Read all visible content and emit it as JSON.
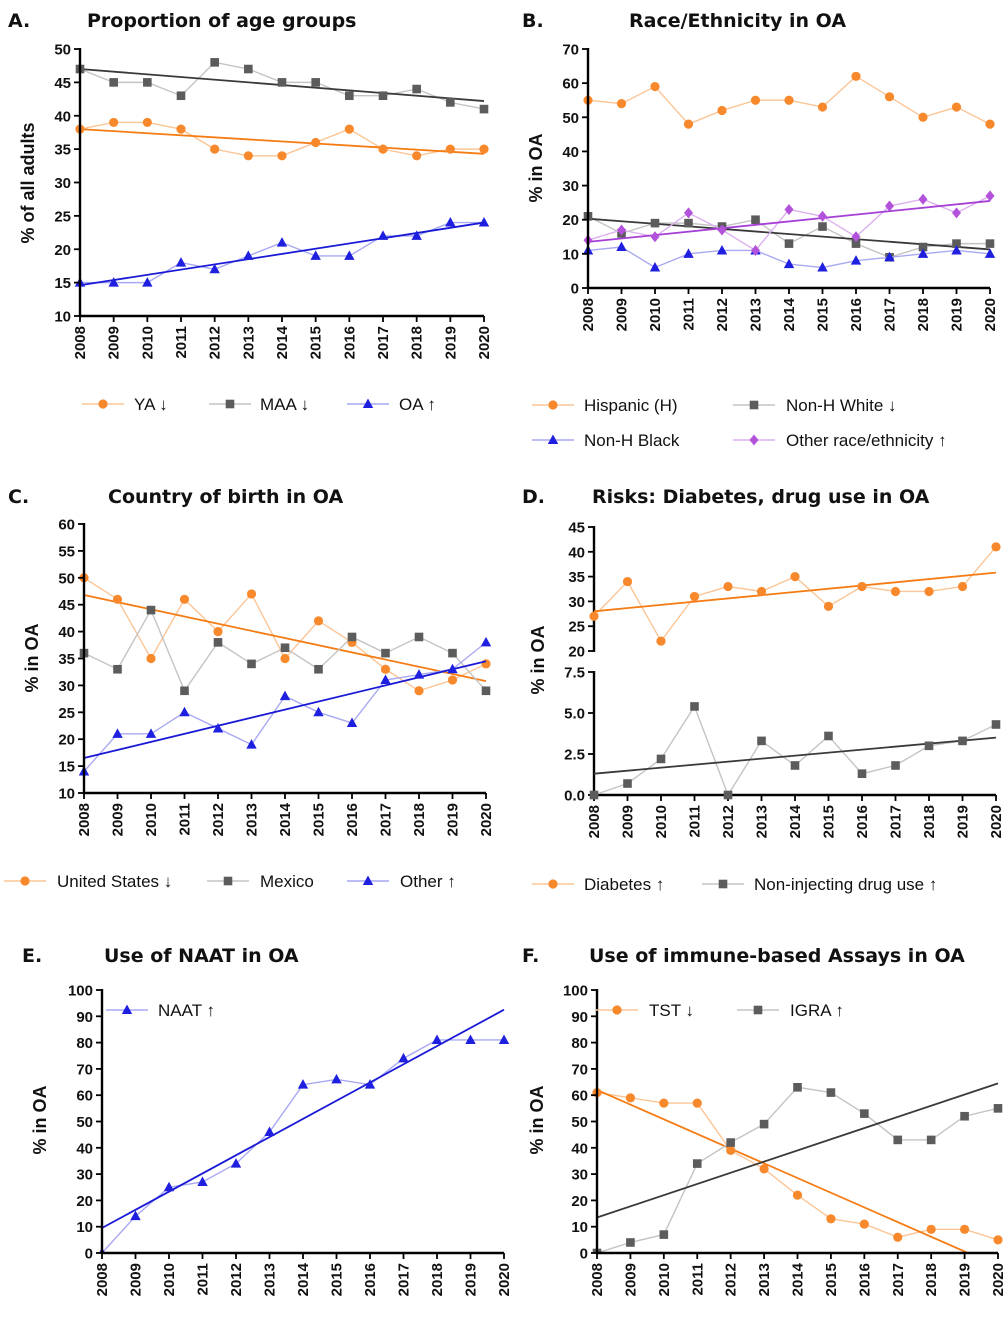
{
  "colors": {
    "orange": "#f7892c",
    "gray": "#5c5c5c",
    "blue": "#1f1fe0",
    "purple": "#b353db",
    "orangeLine": "#f57c14",
    "grayLine": "#3a3a3a",
    "blueLine": "#1a1ad6",
    "purpleLine": "#a63fd6",
    "orangeFaint": "#fbc596",
    "grayFaint": "#c4c4c4",
    "blueFaint": "#a9a9f3",
    "purpleFaint": "#dcb0ef"
  },
  "chart_data": [
    {
      "id": "A",
      "letter": "A.",
      "type": "line",
      "title": "Proportion of age groups",
      "ylabel": "% of all adults",
      "xlabel": "",
      "x": [
        2008,
        2009,
        2010,
        2011,
        2012,
        2013,
        2014,
        2015,
        2016,
        2017,
        2018,
        2019,
        2020
      ],
      "ylim": [
        10,
        50
      ],
      "yticks": [
        "10",
        "15",
        "20",
        "25",
        "30",
        "35",
        "40",
        "45",
        "50"
      ],
      "legend_position": "bottom",
      "series": [
        {
          "name": "YA ↓",
          "color": "orange",
          "marker": "circle",
          "values": [
            38,
            39,
            39,
            38,
            35,
            34,
            34,
            36,
            38,
            35,
            34,
            35,
            35
          ],
          "trend": [
            38.0,
            34.3
          ]
        },
        {
          "name": "MAA ↓",
          "color": "gray",
          "marker": "square",
          "values": [
            47,
            45,
            45,
            43,
            48,
            47,
            45,
            45,
            43,
            43,
            44,
            42,
            41
          ],
          "trend": [
            47.0,
            42.2
          ]
        },
        {
          "name": "OA ↑",
          "color": "blue",
          "marker": "triangle",
          "values": [
            15,
            15,
            15,
            18,
            17,
            19,
            21,
            19,
            19,
            22,
            22,
            24,
            24
          ],
          "trend": [
            14.6,
            24.0
          ]
        }
      ]
    },
    {
      "id": "B",
      "letter": "B.",
      "type": "line",
      "title": "Race/Ethnicity in OA",
      "ylabel": "% in OA",
      "xlabel": "",
      "x": [
        2008,
        2009,
        2010,
        2011,
        2012,
        2013,
        2014,
        2015,
        2016,
        2017,
        2018,
        2019,
        2020
      ],
      "ylim": [
        0,
        70
      ],
      "yticks": [
        "0",
        "10",
        "20",
        "30",
        "40",
        "50",
        "60",
        "70"
      ],
      "legend_position": "bottom",
      "series": [
        {
          "name": "Hispanic (H)",
          "color": "orange",
          "marker": "circle",
          "values": [
            55,
            54,
            59,
            48,
            52,
            55,
            55,
            53,
            62,
            56,
            50,
            53,
            48
          ]
        },
        {
          "name": "Non-H White ↓",
          "color": "gray",
          "marker": "square",
          "values": [
            21,
            16,
            19,
            19,
            18,
            20,
            13,
            18,
            13,
            9,
            12,
            13,
            13
          ],
          "trend": [
            20.3,
            11.3
          ]
        },
        {
          "name": "Non-H Black",
          "color": "blue",
          "marker": "triangle",
          "values": [
            11,
            12,
            6,
            10,
            11,
            11,
            7,
            6,
            8,
            9,
            10,
            11,
            10
          ]
        },
        {
          "name": "Other race/ethnicity ↑",
          "color": "purple",
          "marker": "diamond",
          "values": [
            14,
            17,
            15,
            22,
            17,
            11,
            23,
            21,
            15,
            24,
            26,
            22,
            27
          ],
          "trend": [
            13.5,
            25.5
          ]
        }
      ]
    },
    {
      "id": "C",
      "letter": "C.",
      "type": "line",
      "title": "Country of birth in OA",
      "ylabel": "% in OA",
      "xlabel": "",
      "x": [
        2008,
        2009,
        2010,
        2011,
        2012,
        2013,
        2014,
        2015,
        2016,
        2017,
        2018,
        2019,
        2020
      ],
      "ylim": [
        10,
        60
      ],
      "yticks": [
        "10",
        "15",
        "20",
        "25",
        "30",
        "35",
        "40",
        "45",
        "50",
        "55",
        "60"
      ],
      "legend_position": "bottom",
      "series": [
        {
          "name": "United States ↓",
          "color": "orange",
          "marker": "circle",
          "values": [
            50,
            46,
            35,
            46,
            40,
            47,
            35,
            42,
            38,
            33,
            29,
            31,
            34
          ],
          "trend": [
            46.8,
            30.8
          ]
        },
        {
          "name": "Mexico",
          "color": "gray",
          "marker": "square",
          "values": [
            36,
            33,
            44,
            29,
            38,
            34,
            37,
            33,
            39,
            36,
            39,
            36,
            29
          ]
        },
        {
          "name": "Other ↑",
          "color": "blue",
          "marker": "triangle",
          "values": [
            14,
            21,
            21,
            25,
            22,
            19,
            28,
            25,
            23,
            31,
            32,
            33,
            38
          ],
          "trend": [
            16.5,
            34.5
          ]
        }
      ]
    },
    {
      "id": "D",
      "letter": "D.",
      "type": "line",
      "title": "Risks: Diabetes, drug use in OA",
      "ylabel": "% in OA",
      "xlabel": "",
      "x": [
        2008,
        2009,
        2010,
        2011,
        2012,
        2013,
        2014,
        2015,
        2016,
        2017,
        2018,
        2019,
        2020
      ],
      "broken_axis": true,
      "upper": {
        "ylim": [
          20,
          45
        ],
        "yticks": [
          "20",
          "25",
          "30",
          "35",
          "40",
          "45"
        ]
      },
      "lower": {
        "ylim": [
          0,
          7.5
        ],
        "yticks": [
          "0.0",
          "2.5",
          "5.0",
          "7.5"
        ]
      },
      "legend_position": "bottom",
      "series": [
        {
          "name": "Diabetes ↑",
          "color": "orange",
          "marker": "circle",
          "axis": "upper",
          "values": [
            27,
            34,
            22,
            31,
            33,
            32,
            35,
            29,
            33,
            32,
            32,
            33,
            41
          ],
          "trend": [
            28.0,
            35.8
          ]
        },
        {
          "name": "Non-injecting drug use ↑",
          "color": "gray",
          "marker": "square",
          "axis": "lower",
          "values": [
            0,
            0.7,
            2.2,
            5.4,
            0,
            3.3,
            1.8,
            3.6,
            1.3,
            1.8,
            3.0,
            3.3,
            4.3
          ],
          "trend": [
            1.3,
            3.5
          ]
        }
      ]
    },
    {
      "id": "E",
      "letter": "E.",
      "type": "line",
      "title": "Use of NAAT in OA",
      "ylabel": "% in OA",
      "xlabel": "",
      "x": [
        2008,
        2009,
        2010,
        2011,
        2012,
        2013,
        2014,
        2015,
        2016,
        2017,
        2018,
        2019,
        2020
      ],
      "ylim": [
        0,
        100
      ],
      "yticks": [
        "0",
        "10",
        "20",
        "30",
        "40",
        "50",
        "60",
        "70",
        "80",
        "90",
        "100"
      ],
      "legend_position": "top-left",
      "series": [
        {
          "name": "NAAT ↑",
          "color": "blue",
          "marker": "triangle",
          "values": [
            0,
            14,
            25,
            27,
            34,
            46,
            64,
            66,
            64,
            74,
            81,
            81,
            81
          ],
          "trend": [
            9.5,
            92.5
          ]
        }
      ]
    },
    {
      "id": "F",
      "letter": "F.",
      "type": "line",
      "title": "Use of immune-based Assays in OA",
      "ylabel": "% in OA",
      "xlabel": "",
      "x": [
        2008,
        2009,
        2010,
        2011,
        2012,
        2013,
        2014,
        2015,
        2016,
        2017,
        2018,
        2019,
        2020
      ],
      "ylim": [
        0,
        100
      ],
      "yticks": [
        "0",
        "10",
        "20",
        "30",
        "40",
        "50",
        "60",
        "70",
        "80",
        "90",
        "100"
      ],
      "legend_position": "top",
      "series": [
        {
          "name": "TST ↓",
          "color": "orange",
          "marker": "circle",
          "values": [
            61,
            59,
            57,
            57,
            39,
            32,
            22,
            13,
            11,
            6,
            9,
            9,
            5
          ],
          "trend": [
            62.0,
            -5.0
          ]
        },
        {
          "name": "IGRA ↑",
          "color": "gray",
          "marker": "square",
          "values": [
            0,
            4,
            7,
            34,
            42,
            49,
            63,
            61,
            53,
            43,
            43,
            52,
            55
          ],
          "trend": [
            13.5,
            64.5
          ]
        }
      ]
    }
  ]
}
